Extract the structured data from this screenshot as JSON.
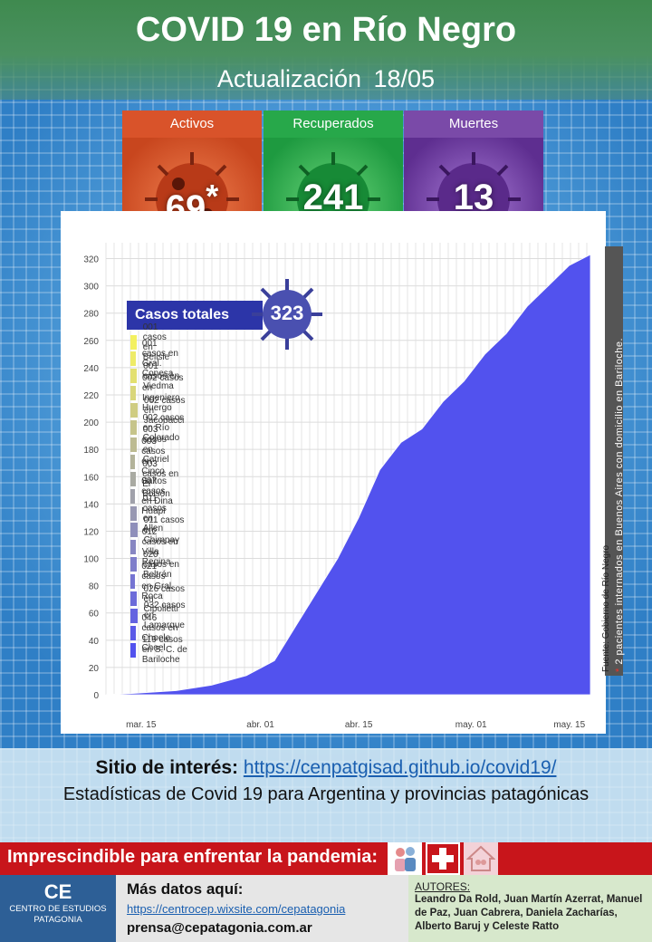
{
  "header": {
    "title": "COVID 19 en Río Negro",
    "update": "Actualización  18/05"
  },
  "stats": [
    {
      "label": "Activos",
      "value": "69",
      "note": "*",
      "color": "#d9532a"
    },
    {
      "label": "Recuperados",
      "value": "241",
      "note": "",
      "color": "#27a84a"
    },
    {
      "label": "Muertes",
      "value": "13",
      "note": "",
      "color": "#7a4aa8"
    }
  ],
  "totals": {
    "label": "Casos totales",
    "value": "323"
  },
  "side_note": {
    "star": "*",
    "text": "2 pacientes internados en Buenos Aires con domicilio en Bariloche.",
    "source": "Fuente: Gobierno de Río Negro"
  },
  "chart_data": {
    "type": "area",
    "stacked": true,
    "x_tick_labels": [
      "mar. 15",
      "abr. 01",
      "abr. 15",
      "may. 01",
      "may. 15"
    ],
    "x_tick_dates": [
      "2020-03-15",
      "2020-04-01",
      "2020-04-15",
      "2020-05-01",
      "2020-05-15"
    ],
    "x_range": [
      "2020-03-10",
      "2020-05-18"
    ],
    "y_ticks": [
      0,
      20,
      40,
      60,
      80,
      100,
      120,
      140,
      160,
      180,
      200,
      220,
      240,
      260,
      280,
      300,
      320
    ],
    "ylim": [
      0,
      325
    ],
    "grid": true,
    "legend_position": "top-left",
    "total_curve": {
      "dates": [
        "2020-03-10",
        "2020-03-14",
        "2020-03-20",
        "2020-03-25",
        "2020-03-30",
        "2020-04-03",
        "2020-04-06",
        "2020-04-09",
        "2020-04-12",
        "2020-04-15",
        "2020-04-18",
        "2020-04-21",
        "2020-04-24",
        "2020-04-27",
        "2020-04-30",
        "2020-05-03",
        "2020-05-06",
        "2020-05-09",
        "2020-05-12",
        "2020-05-15",
        "2020-05-18"
      ],
      "values": [
        0,
        1,
        3,
        7,
        14,
        25,
        50,
        75,
        100,
        130,
        165,
        185,
        195,
        215,
        230,
        250,
        265,
        285,
        300,
        315,
        323
      ]
    },
    "series": [
      {
        "label": "001 casos en Belisle",
        "value": 1,
        "color": "#f3f060"
      },
      {
        "label": "001 casos en Gral. Conesa",
        "value": 1,
        "color": "#eeeb68"
      },
      {
        "label": "001 casos en Viedma",
        "value": 1,
        "color": "#e3e070"
      },
      {
        "label": "002 casos en Ingeniero Huergo",
        "value": 2,
        "color": "#d9d67a"
      },
      {
        "label": "002 casos en Jacobacci",
        "value": 2,
        "color": "#cfcc82"
      },
      {
        "label": "002 casos en Río Colorado",
        "value": 2,
        "color": "#c6c48a"
      },
      {
        "label": "003 casos en Catriel",
        "value": 3,
        "color": "#bdbb92"
      },
      {
        "label": "003 casos en Cinco Saltos",
        "value": 3,
        "color": "#b3b39a"
      },
      {
        "label": "003 casos en El Bolsón",
        "value": 3,
        "color": "#a9aaa2"
      },
      {
        "label": "007 casos en Dina Huapi",
        "value": 7,
        "color": "#a0a1aa"
      },
      {
        "label": "011 casos en Allen",
        "value": 11,
        "color": "#9898b2"
      },
      {
        "label": "011 casos en Chimpay",
        "value": 11,
        "color": "#8f8fba"
      },
      {
        "label": "012 casos en Villa Regina",
        "value": 12,
        "color": "#8786c2"
      },
      {
        "label": "020 casos en Beltrán",
        "value": 20,
        "color": "#7e7dca"
      },
      {
        "label": "021 casos en Gral. Roca",
        "value": 21,
        "color": "#7574d2"
      },
      {
        "label": "026 casos en Cipolletti",
        "value": 26,
        "color": "#6c6bd9"
      },
      {
        "label": "032 casos en Lamarque",
        "value": 32,
        "color": "#6463e0"
      },
      {
        "label": "046 casos en Choele Choel",
        "value": 46,
        "color": "#5b5ae7"
      },
      {
        "label": "119 casos en S. C. de Bariloche",
        "value": 119,
        "color": "#5252ee"
      }
    ]
  },
  "interest": {
    "label": "Sitio de interés:",
    "url": "https://cenpatgisad.github.io/covid19/",
    "description": "Estadísticas de Covid 19 para Argentina y provincias patagónicas"
  },
  "banner": {
    "text": "Imprescindible para enfrentar la pandemia:",
    "icons": [
      "family-icon",
      "health-cross-icon",
      "home-icon"
    ]
  },
  "footer": {
    "logo_mark": "CE",
    "logo_line1": "CENTRO DE ESTUDIOS",
    "logo_line2": "PATAGONIA",
    "more_label": "Más datos aquí:",
    "more_url": "https://centrocep.wixsite.com/cepatagonia",
    "email": "prensa@cepatagonia.com.ar",
    "authors_label": "AUTORES:",
    "authors": "Leandro Da Rold, Juan Martín Azerrat, Manuel de Paz, Juan Cabrera, Daniela Zacharías, Alberto Baruj y Celeste Ratto"
  }
}
